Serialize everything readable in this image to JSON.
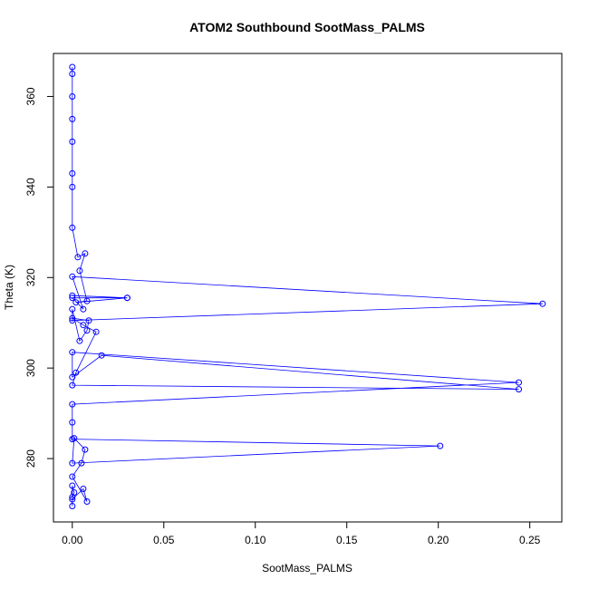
{
  "chart_data": {
    "type": "scatter",
    "title": "ATOM2 Southbound SootMass_PALMS",
    "xlabel": "SootMass_PALMS",
    "ylabel": "Theta (K)",
    "xlim": [
      -0.0103,
      0.2675
    ],
    "ylim": [
      266.0,
      369.5
    ],
    "x_ticks": [
      0,
      0.05,
      0.1,
      0.15,
      0.2,
      0.25
    ],
    "x_tick_labels": [
      "0.00",
      "0.05",
      "0.10",
      "0.15",
      "0.20",
      "0.25"
    ],
    "y_ticks": [
      280,
      300,
      320,
      340,
      360
    ],
    "y_tick_labels": [
      "280",
      "300",
      "320",
      "340",
      "360"
    ],
    "color": "#0000ff",
    "marker": "open-circle",
    "connected": true,
    "grid": false,
    "series": [
      {
        "x": [
          0,
          0,
          0.001,
          0,
          0,
          0.006,
          0.008,
          0,
          0.005,
          0.007,
          0.001,
          0,
          0.201,
          0,
          0,
          0,
          0.244,
          0,
          0,
          0.016,
          0.244,
          0,
          0.002,
          0.013,
          0.006,
          0,
          0.009,
          0.008,
          0.004,
          0,
          0,
          0.257,
          0,
          0.006,
          0,
          0.03,
          0,
          0.03,
          0.002,
          0.008,
          0.004,
          0.007,
          0.003,
          0,
          0,
          0,
          0,
          0,
          0,
          0,
          0
        ],
        "y": [
          269.5,
          271.5,
          272.5,
          274.0,
          271.0,
          273.3,
          270.5,
          276.0,
          279.0,
          282.0,
          284.5,
          279.0,
          282.8,
          284.3,
          288.0,
          292.0,
          296.8,
          303.5,
          298.0,
          302.8,
          295.3,
          296.2,
          299.0,
          308.0,
          309.5,
          311.0,
          310.5,
          308.3,
          306.0,
          313.0,
          310.5,
          314.2,
          320.2,
          313.0,
          315.5,
          315.5,
          316.0,
          315.5,
          314.5,
          314.8,
          321.5,
          325.3,
          324.5,
          331.0,
          340.0,
          343.0,
          350.0,
          355.0,
          360.0,
          365.0,
          366.5
        ]
      }
    ]
  }
}
